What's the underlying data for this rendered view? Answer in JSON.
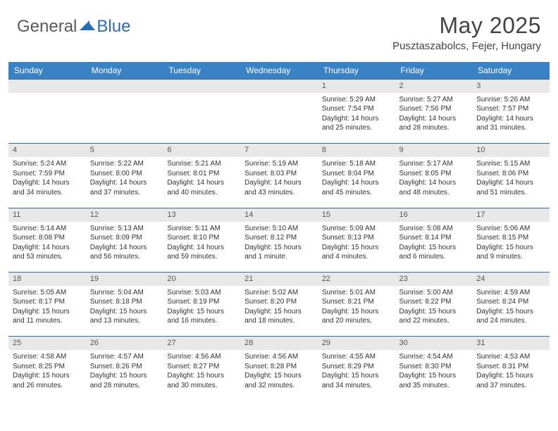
{
  "logo": {
    "text1": "General",
    "text2": "Blue"
  },
  "title": "May 2025",
  "location": "Pusztaszabolcs, Fejer, Hungary",
  "colors": {
    "header_bg": "#3b82c4",
    "header_text": "#ffffff",
    "daynum_bg": "#e8e8e8",
    "border": "#2a6db5",
    "logo_gray": "#5a5a5a",
    "logo_blue": "#2a6db5"
  },
  "day_headers": [
    "Sunday",
    "Monday",
    "Tuesday",
    "Wednesday",
    "Thursday",
    "Friday",
    "Saturday"
  ],
  "weeks": [
    {
      "nums": [
        "",
        "",
        "",
        "",
        "1",
        "2",
        "3"
      ],
      "details": [
        "",
        "",
        "",
        "",
        "Sunrise: 5:29 AM\nSunset: 7:54 PM\nDaylight: 14 hours and 25 minutes.",
        "Sunrise: 5:27 AM\nSunset: 7:56 PM\nDaylight: 14 hours and 28 minutes.",
        "Sunrise: 5:26 AM\nSunset: 7:57 PM\nDaylight: 14 hours and 31 minutes."
      ]
    },
    {
      "nums": [
        "4",
        "5",
        "6",
        "7",
        "8",
        "9",
        "10"
      ],
      "details": [
        "Sunrise: 5:24 AM\nSunset: 7:59 PM\nDaylight: 14 hours and 34 minutes.",
        "Sunrise: 5:22 AM\nSunset: 8:00 PM\nDaylight: 14 hours and 37 minutes.",
        "Sunrise: 5:21 AM\nSunset: 8:01 PM\nDaylight: 14 hours and 40 minutes.",
        "Sunrise: 5:19 AM\nSunset: 8:03 PM\nDaylight: 14 hours and 43 minutes.",
        "Sunrise: 5:18 AM\nSunset: 8:04 PM\nDaylight: 14 hours and 45 minutes.",
        "Sunrise: 5:17 AM\nSunset: 8:05 PM\nDaylight: 14 hours and 48 minutes.",
        "Sunrise: 5:15 AM\nSunset: 8:06 PM\nDaylight: 14 hours and 51 minutes."
      ]
    },
    {
      "nums": [
        "11",
        "12",
        "13",
        "14",
        "15",
        "16",
        "17"
      ],
      "details": [
        "Sunrise: 5:14 AM\nSunset: 8:08 PM\nDaylight: 14 hours and 53 minutes.",
        "Sunrise: 5:13 AM\nSunset: 8:09 PM\nDaylight: 14 hours and 56 minutes.",
        "Sunrise: 5:11 AM\nSunset: 8:10 PM\nDaylight: 14 hours and 59 minutes.",
        "Sunrise: 5:10 AM\nSunset: 8:12 PM\nDaylight: 15 hours and 1 minute.",
        "Sunrise: 5:09 AM\nSunset: 8:13 PM\nDaylight: 15 hours and 4 minutes.",
        "Sunrise: 5:08 AM\nSunset: 8:14 PM\nDaylight: 15 hours and 6 minutes.",
        "Sunrise: 5:06 AM\nSunset: 8:15 PM\nDaylight: 15 hours and 9 minutes."
      ]
    },
    {
      "nums": [
        "18",
        "19",
        "20",
        "21",
        "22",
        "23",
        "24"
      ],
      "details": [
        "Sunrise: 5:05 AM\nSunset: 8:17 PM\nDaylight: 15 hours and 11 minutes.",
        "Sunrise: 5:04 AM\nSunset: 8:18 PM\nDaylight: 15 hours and 13 minutes.",
        "Sunrise: 5:03 AM\nSunset: 8:19 PM\nDaylight: 15 hours and 16 minutes.",
        "Sunrise: 5:02 AM\nSunset: 8:20 PM\nDaylight: 15 hours and 18 minutes.",
        "Sunrise: 5:01 AM\nSunset: 8:21 PM\nDaylight: 15 hours and 20 minutes.",
        "Sunrise: 5:00 AM\nSunset: 8:22 PM\nDaylight: 15 hours and 22 minutes.",
        "Sunrise: 4:59 AM\nSunset: 8:24 PM\nDaylight: 15 hours and 24 minutes."
      ]
    },
    {
      "nums": [
        "25",
        "26",
        "27",
        "28",
        "29",
        "30",
        "31"
      ],
      "details": [
        "Sunrise: 4:58 AM\nSunset: 8:25 PM\nDaylight: 15 hours and 26 minutes.",
        "Sunrise: 4:57 AM\nSunset: 8:26 PM\nDaylight: 15 hours and 28 minutes.",
        "Sunrise: 4:56 AM\nSunset: 8:27 PM\nDaylight: 15 hours and 30 minutes.",
        "Sunrise: 4:56 AM\nSunset: 8:28 PM\nDaylight: 15 hours and 32 minutes.",
        "Sunrise: 4:55 AM\nSunset: 8:29 PM\nDaylight: 15 hours and 34 minutes.",
        "Sunrise: 4:54 AM\nSunset: 8:30 PM\nDaylight: 15 hours and 35 minutes.",
        "Sunrise: 4:53 AM\nSunset: 8:31 PM\nDaylight: 15 hours and 37 minutes."
      ]
    }
  ]
}
